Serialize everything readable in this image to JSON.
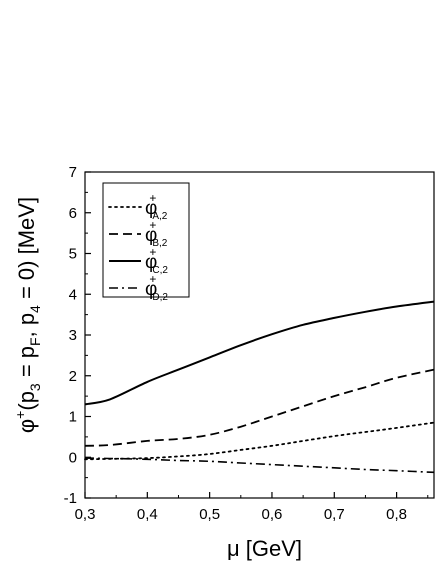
{
  "chart_data": {
    "type": "line",
    "title": "",
    "xlabel": "μ [GeV]",
    "ylabel": "φ⁺(p₃ = p_F, p₄ = 0) [MeV]",
    "ylabel_parts": {
      "phi": "φ",
      "plus": "+",
      "open": "(p",
      "sub3": "3",
      "eq1": " = p",
      "subF": "F",
      "comma": ", p",
      "sub4": "4",
      "eq0": " = 0) [MeV]"
    },
    "xlim": [
      0.3,
      0.86
    ],
    "ylim": [
      -1,
      7
    ],
    "x_ticks": [
      0.3,
      0.4,
      0.5,
      0.6,
      0.7,
      0.8
    ],
    "x_tick_labels": [
      "0,3",
      "0,4",
      "0,5",
      "0,6",
      "0,7",
      "0,8"
    ],
    "y_ticks": [
      -1,
      0,
      1,
      2,
      3,
      4,
      5,
      6,
      7
    ],
    "y_tick_labels": [
      "-1",
      "0",
      "1",
      "2",
      "3",
      "4",
      "5",
      "6",
      "7"
    ],
    "grid": false,
    "legend_position": "top-left",
    "x": [
      0.3,
      0.34,
      0.4,
      0.45,
      0.5,
      0.55,
      0.6,
      0.65,
      0.7,
      0.75,
      0.8,
      0.86
    ],
    "series": [
      {
        "name": "φ⁺A,2",
        "legend": {
          "base": "φ",
          "sup": "+",
          "sub": "A,2"
        },
        "style": "dotted",
        "values": [
          -0.05,
          -0.04,
          -0.02,
          0.02,
          0.08,
          0.18,
          0.28,
          0.4,
          0.52,
          0.62,
          0.72,
          0.85
        ]
      },
      {
        "name": "φ⁺B,2",
        "legend": {
          "base": "φ",
          "sup": "+",
          "sub": "B,2"
        },
        "style": "dashed",
        "values": [
          0.28,
          0.3,
          0.4,
          0.45,
          0.55,
          0.75,
          1.0,
          1.25,
          1.5,
          1.72,
          1.95,
          2.15
        ]
      },
      {
        "name": "φ⁺C,2",
        "legend": {
          "base": "φ",
          "sup": "+",
          "sub": "C,2"
        },
        "style": "solid",
        "values": [
          1.3,
          1.42,
          1.85,
          2.15,
          2.45,
          2.75,
          3.02,
          3.25,
          3.42,
          3.57,
          3.7,
          3.82
        ]
      },
      {
        "name": "φ⁺D,2",
        "legend": {
          "base": "φ",
          "sup": "+",
          "sub": "D,2"
        },
        "style": "dashdot",
        "values": [
          -0.02,
          -0.03,
          -0.05,
          -0.08,
          -0.1,
          -0.14,
          -0.18,
          -0.22,
          -0.26,
          -0.3,
          -0.33,
          -0.37
        ]
      }
    ],
    "colors": {
      "line": "#000000",
      "background": "#ffffff"
    }
  }
}
